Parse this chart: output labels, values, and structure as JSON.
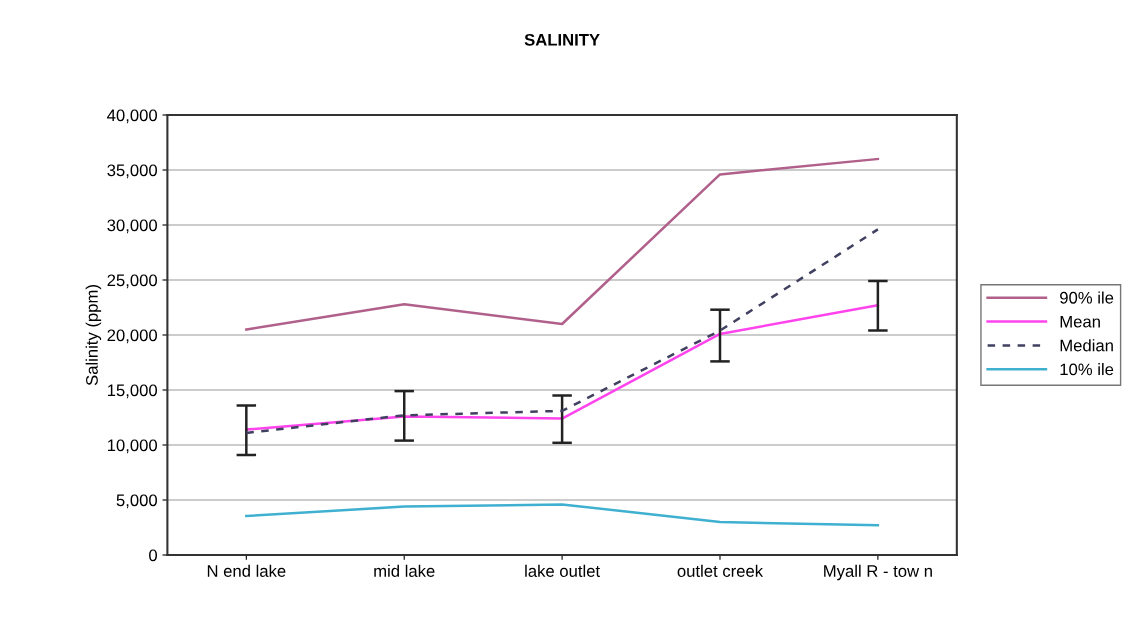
{
  "chart_data": {
    "type": "line",
    "title": "SALINITY",
    "ylabel": "Salinity (ppm)",
    "categories": [
      "N end lake",
      "mid lake",
      "lake outlet",
      "outlet creek",
      "Myall R - tow n"
    ],
    "series": [
      {
        "name": "90% ile",
        "color": "#b0608a",
        "values": [
          20500,
          22800,
          21000,
          34600,
          36000
        ]
      },
      {
        "name": "Mean",
        "color": "#ff44ee",
        "values": [
          11400,
          12600,
          12400,
          20100,
          22700
        ],
        "errors": [
          [
            9100,
            13600
          ],
          [
            10400,
            14900
          ],
          [
            10200,
            14500
          ],
          [
            17600,
            22300
          ],
          [
            20400,
            24900
          ]
        ]
      },
      {
        "name": "Median",
        "color": "#404060",
        "line_style": "dashed",
        "values": [
          11100,
          12700,
          13100,
          20400,
          29600
        ]
      },
      {
        "name": "10% ile",
        "color": "#40b0d0",
        "values": [
          3550,
          4400,
          4600,
          3000,
          2700
        ]
      }
    ],
    "ylim": [
      0,
      40000
    ],
    "yticks": [
      0,
      {
        "value": 5000,
        "label": "5,000"
      },
      {
        "value": 10000,
        "label": "10,000"
      },
      {
        "value": 15000,
        "label": "15,000"
      },
      {
        "value": 20000,
        "label": "20,000"
      },
      {
        "value": 25000,
        "label": "25,000"
      },
      {
        "value": 30000,
        "label": "30,000"
      },
      {
        "value": 35000,
        "label": "35,000"
      },
      {
        "value": 40000,
        "label": "40,000"
      }
    ],
    "grid": "y",
    "legend": "right",
    "marker": "none"
  }
}
